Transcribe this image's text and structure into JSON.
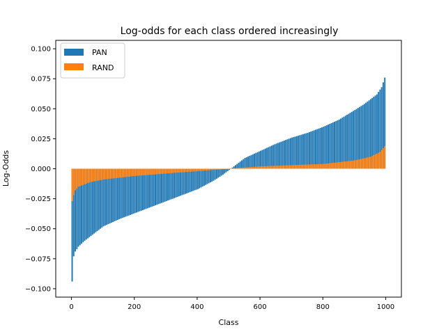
{
  "chart_data": {
    "type": "bar",
    "title": "Log-odds for each class ordered increasingly",
    "xlabel": "Class",
    "ylabel": "Log-Odds",
    "xlim": [
      -50,
      1050
    ],
    "ylim": [
      -0.107,
      0.107
    ],
    "xticks": [
      0,
      200,
      400,
      600,
      800,
      1000
    ],
    "yticks": [
      -0.1,
      -0.075,
      -0.05,
      -0.025,
      0.0,
      0.025,
      0.05,
      0.075,
      0.1
    ],
    "ytick_labels": [
      "−0.100",
      "−0.075",
      "−0.050",
      "−0.025",
      "0.000",
      "0.025",
      "0.050",
      "0.075",
      "0.100"
    ],
    "legend_position": "upper-left",
    "n_classes": 1000,
    "bar_step": 5,
    "series": [
      {
        "name": "PAN",
        "color": "#1f77b4",
        "curve_x": [
          0,
          2,
          5,
          10,
          20,
          40,
          60,
          100,
          150,
          200,
          250,
          300,
          350,
          400,
          450,
          480,
          500,
          520,
          550,
          600,
          650,
          700,
          750,
          800,
          850,
          900,
          930,
          950,
          970,
          985,
          995,
          999
        ],
        "curve_y": [
          -0.094,
          -0.085,
          -0.073,
          -0.069,
          -0.065,
          -0.06,
          -0.056,
          -0.048,
          -0.042,
          -0.037,
          -0.032,
          -0.027,
          -0.022,
          -0.017,
          -0.01,
          -0.005,
          -0.001,
          0.003,
          0.009,
          0.015,
          0.021,
          0.026,
          0.03,
          0.035,
          0.041,
          0.049,
          0.054,
          0.058,
          0.062,
          0.068,
          0.076,
          0.082
        ]
      },
      {
        "name": "RAND",
        "color": "#ff7f0e",
        "curve_x": [
          0,
          5,
          10,
          20,
          40,
          60,
          100,
          200,
          300,
          400,
          450,
          500,
          550,
          600,
          700,
          800,
          900,
          950,
          980,
          999
        ],
        "curve_y": [
          -0.027,
          -0.022,
          -0.018,
          -0.015,
          -0.013,
          -0.011,
          -0.009,
          -0.006,
          -0.004,
          -0.002,
          -0.001,
          0.0,
          0.001,
          0.002,
          0.003,
          0.004,
          0.007,
          0.01,
          0.014,
          0.02
        ]
      }
    ]
  }
}
